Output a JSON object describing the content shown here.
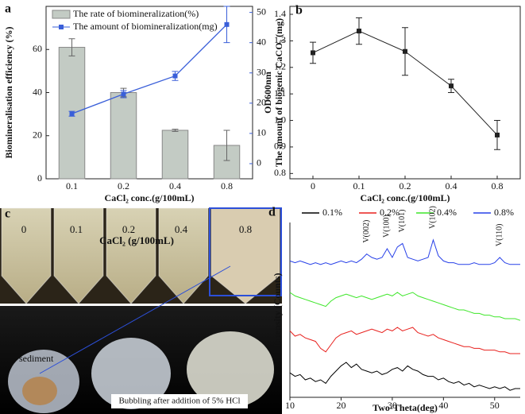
{
  "chart_data": [
    {
      "type": "bar_line",
      "panel": "a",
      "categories": [
        "0.1",
        "0.2",
        "0.4",
        "0.8"
      ],
      "xlabel": "CaCl₂ conc.(g/100mL)",
      "ylabel": "Biomineralisation efficiency (%)",
      "y2label": "The amount of biogenic CaCO₃ (mg)",
      "ylim": [
        0,
        80
      ],
      "yticks": [
        0,
        20,
        40,
        60
      ],
      "y2lim": [
        -5,
        52
      ],
      "y2ticks": [
        0,
        10,
        20,
        30,
        40,
        50
      ],
      "legend": "upper left",
      "series": [
        {
          "name": "The rate of biomineralization(%)",
          "kind": "bar",
          "color": "#c3cbc4",
          "values": [
            61,
            40,
            22.5,
            15.5
          ],
          "errors": [
            4,
            2,
            0.5,
            7
          ]
        },
        {
          "name": "The amount of biomineralization(mg)",
          "kind": "line",
          "axis": "y2",
          "color": "#3a5fd9",
          "values": [
            16.5,
            23,
            29,
            46
          ],
          "errors": [
            0.8,
            1.2,
            1.5,
            6
          ]
        }
      ]
    },
    {
      "type": "line",
      "panel": "b",
      "categories": [
        "0",
        "0.1",
        "0.2",
        "0.4",
        "0.8"
      ],
      "xlabel": "CaCl₂ conc.(g/100mL)",
      "ylabel": "OD600nm",
      "ylim": [
        0.78,
        1.43
      ],
      "yticks": [
        0.8,
        0.9,
        {
          "value": 1,
          "label": "1.0"
        },
        1.1,
        1.2,
        1.3,
        1.4
      ],
      "series": [
        {
          "color": "#222222",
          "values": [
            1.255,
            1.337,
            1.26,
            1.13,
            0.945
          ],
          "errors": [
            0.04,
            0.05,
            0.09,
            0.025,
            0.055
          ]
        }
      ]
    },
    {
      "type": "xrd",
      "panel": "d",
      "xlabel": "Two-Theta(deg)",
      "ylabel": "Intensity (Counts)",
      "xlim": [
        10,
        55
      ],
      "xticks": [
        10,
        20,
        30,
        40,
        50
      ],
      "ylim": [
        0,
        100
      ],
      "x": [
        10,
        11,
        12,
        13,
        14,
        15,
        16,
        17,
        18,
        19,
        20,
        21,
        22,
        23,
        24,
        25,
        26,
        27,
        28,
        29,
        30,
        31,
        32,
        33,
        34,
        35,
        36,
        37,
        38,
        39,
        40,
        41,
        42,
        43,
        44,
        45,
        46,
        47,
        48,
        49,
        50,
        51,
        52,
        53,
        54,
        55
      ],
      "series": [
        {
          "name": "0.1%",
          "color": "#000000",
          "values": [
            14,
            12,
            13,
            10,
            11,
            9,
            10,
            8,
            12,
            15,
            18,
            20,
            17,
            19,
            16,
            15,
            14,
            15,
            13,
            14,
            16,
            17,
            15,
            18,
            16,
            15,
            13,
            12,
            12,
            10,
            11,
            9,
            8,
            9,
            7,
            8,
            6,
            7,
            6,
            5,
            6,
            5,
            6,
            4,
            5,
            5
          ]
        },
        {
          "name": "0.2%",
          "color": "#e8211e",
          "values": [
            38,
            35,
            36,
            34,
            33,
            32,
            28,
            26,
            30,
            34,
            36,
            37,
            38,
            36,
            37,
            38,
            39,
            38,
            37,
            39,
            38,
            40,
            38,
            39,
            40,
            37,
            36,
            35,
            36,
            34,
            33,
            32,
            31,
            30,
            29,
            29,
            28,
            28,
            27,
            27,
            27,
            26,
            26,
            25,
            25,
            25
          ]
        },
        {
          "name": "0.4%",
          "color": "#3ee62a",
          "values": [
            60,
            58,
            57,
            56,
            55,
            54,
            53,
            52,
            55,
            57,
            58,
            59,
            58,
            57,
            58,
            57,
            56,
            57,
            58,
            59,
            58,
            60,
            58,
            59,
            60,
            58,
            57,
            56,
            55,
            54,
            53,
            52,
            51,
            50,
            50,
            49,
            48,
            48,
            47,
            47,
            46,
            46,
            45,
            45,
            45,
            44
          ]
        },
        {
          "name": "0.8%",
          "color": "#2740e8",
          "values": [
            78,
            77,
            78,
            77,
            76,
            77,
            76,
            77,
            76,
            77,
            78,
            77,
            78,
            77,
            79,
            82,
            80,
            79,
            80,
            85,
            80,
            86,
            88,
            80,
            79,
            78,
            79,
            80,
            90,
            81,
            78,
            77,
            77,
            76,
            76,
            76,
            77,
            76,
            76,
            76,
            77,
            80,
            77,
            76,
            76,
            76
          ]
        }
      ],
      "annotations": [
        {
          "text": "V(002)",
          "x": 25
        },
        {
          "text": "V(100)",
          "x": 29
        },
        {
          "text": "V(101)",
          "x": 32
        },
        {
          "text": "V(102)",
          "x": 38
        },
        {
          "text": "V(110)",
          "x": 51
        }
      ]
    }
  ],
  "panel_c": {
    "letter": "c",
    "concs": [
      "0",
      "0.1",
      "0.2",
      "0.4",
      "0.8"
    ],
    "unit": "CaCl₂ (g/100mL)",
    "sediment": "sediment",
    "caption": "Bubbling after addition of 5% HCl"
  }
}
